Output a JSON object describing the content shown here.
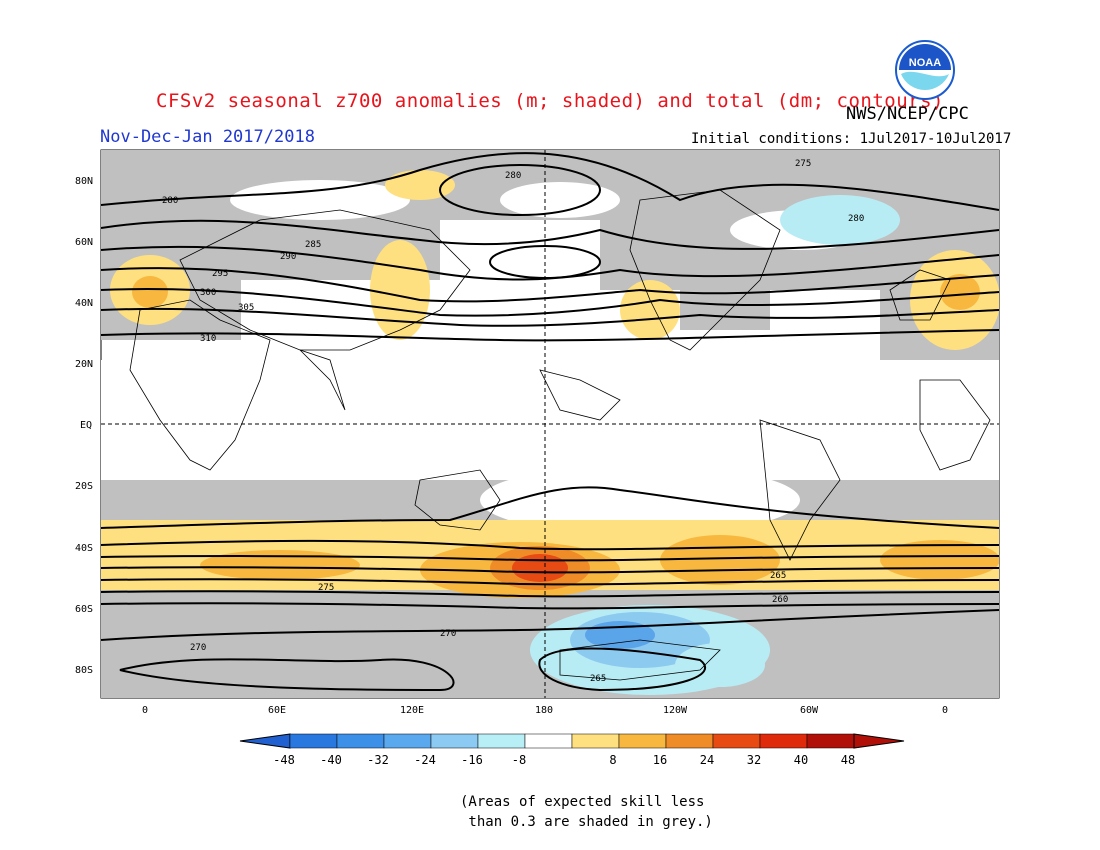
{
  "header": {
    "title": "CFSv2 seasonal z700 anomalies (m; shaded) and total (dm; contours)",
    "agency": "NWS/NCEP/CPC",
    "period": "Nov-Dec-Jan 2017/2018",
    "initial_conditions": "Initial conditions: 1Jul2017-10Jul2017",
    "logo_text": "NOAA"
  },
  "map": {
    "lat_ticks": [
      "80N",
      "60N",
      "40N",
      "20N",
      "EQ",
      "20S",
      "40S",
      "60S",
      "80S"
    ],
    "lon_ticks": [
      "0",
      "60E",
      "120E",
      "180",
      "120W",
      "60W",
      "0"
    ],
    "contour_labels": [
      "280",
      "275",
      "280",
      "265",
      "270",
      "285",
      "290",
      "295",
      "300",
      "305",
      "310",
      "270",
      "265",
      "275",
      "260",
      "280"
    ],
    "anomaly_colors": {
      "grey": "#c0c0c0",
      "pos8": "#ffe080",
      "pos16": "#f8b840",
      "pos24": "#f08c28",
      "pos32": "#e84a14",
      "neg8": "#b8ecf4",
      "neg16": "#8ccaf0",
      "neg24": "#5aa4ea"
    }
  },
  "colorbar": {
    "labels": [
      "-48",
      "-40",
      "-32",
      "-24",
      "-16",
      "-8",
      "8",
      "16",
      "24",
      "32",
      "40",
      "48"
    ],
    "colors": [
      "#2060d0",
      "#2878e0",
      "#3c90e8",
      "#5aa8ee",
      "#8ccaf4",
      "#b8eef6",
      "#ffffff",
      "#ffe080",
      "#f8b840",
      "#f08c28",
      "#e84a14",
      "#e02a0c",
      "#b01008",
      "#b01008"
    ]
  },
  "note": "(Areas of expected skill less\n than 0.3 are shaded in grey.)"
}
